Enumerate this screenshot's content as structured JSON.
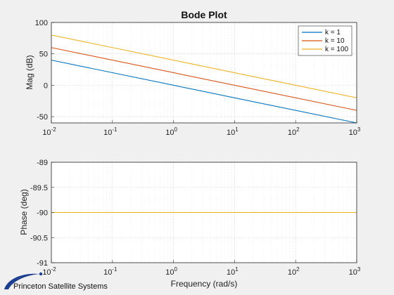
{
  "brand": "Princeton Satellite Systems",
  "chart_data": {
    "title": "Bode Plot",
    "xlabel": "Frequency (rad/s)",
    "xscale": "log",
    "xlim": [
      0.01,
      1000
    ],
    "x_tick_exponents": [
      -2,
      -1,
      0,
      1,
      2,
      3
    ],
    "x": [
      0.01,
      1000
    ],
    "grid": true,
    "legend_placement": "top-right",
    "series": [
      {
        "name": "k = 1",
        "color": "#0072BD",
        "mag_db": [
          40,
          -60
        ],
        "phase_deg": [
          -90,
          -90
        ]
      },
      {
        "name": "k = 10",
        "color": "#D95319",
        "mag_db": [
          60,
          -40
        ],
        "phase_deg": [
          -90,
          -90
        ]
      },
      {
        "name": "k = 100",
        "color": "#EDB120",
        "mag_db": [
          80,
          -20
        ],
        "phase_deg": [
          -90,
          -90
        ]
      }
    ],
    "panels": [
      {
        "type": "line",
        "ylabel": "Mag  (dB)",
        "ylim": [
          -60,
          100
        ],
        "y_ticks": [
          "100",
          "50",
          "0",
          "-50"
        ],
        "y_tick_values": [
          100,
          50,
          0,
          -50
        ]
      },
      {
        "type": "line",
        "ylabel": "Phase (deg)",
        "ylim": [
          -91,
          -89
        ],
        "y_ticks": [
          "-89",
          "-89.5",
          "-90",
          "-90.5",
          "-91"
        ],
        "y_tick_values": [
          -89,
          -89.5,
          -90,
          -90.5,
          -91
        ]
      }
    ]
  }
}
